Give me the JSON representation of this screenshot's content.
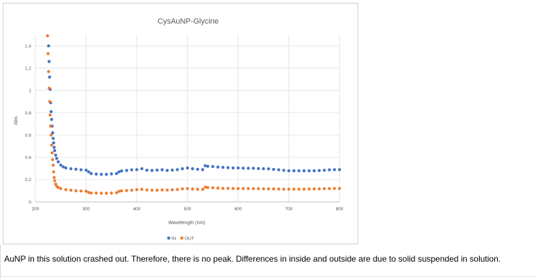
{
  "chart_data": {
    "type": "scatter",
    "title": "CysAuNP-Glycine",
    "xlabel": "Wavelength (nm)",
    "ylabel": "Abs.",
    "xlim": [
      200,
      800
    ],
    "ylim": [
      0,
      1.5
    ],
    "xticks": [
      "200",
      "300",
      "400",
      "500",
      "600",
      "700",
      "800"
    ],
    "yticks": [
      "0",
      "0.2",
      "0.4",
      "0.6",
      "0.8",
      "1",
      "1.2",
      "1.4"
    ],
    "grid": true,
    "legend": "bottom",
    "series": [
      {
        "name": "IN",
        "color": "#4472c4",
        "points": [
          [
            226,
            1.4
          ],
          [
            227,
            1.26
          ],
          [
            228,
            1.12
          ],
          [
            229,
            1.01
          ],
          [
            230,
            0.89
          ],
          [
            231,
            0.81
          ],
          [
            232,
            0.74
          ],
          [
            233,
            0.68
          ],
          [
            234,
            0.62
          ],
          [
            235,
            0.57
          ],
          [
            236,
            0.53
          ],
          [
            237,
            0.49
          ],
          [
            238,
            0.46
          ],
          [
            240,
            0.42
          ],
          [
            242,
            0.39
          ],
          [
            245,
            0.36
          ],
          [
            250,
            0.33
          ],
          [
            255,
            0.315
          ],
          [
            260,
            0.305
          ],
          [
            270,
            0.298
          ],
          [
            280,
            0.294
          ],
          [
            290,
            0.288
          ],
          [
            300,
            0.285
          ],
          [
            305,
            0.27
          ],
          [
            310,
            0.255
          ],
          [
            320,
            0.25
          ],
          [
            330,
            0.248
          ],
          [
            340,
            0.248
          ],
          [
            350,
            0.252
          ],
          [
            360,
            0.255
          ],
          [
            365,
            0.27
          ],
          [
            370,
            0.278
          ],
          [
            380,
            0.283
          ],
          [
            390,
            0.288
          ],
          [
            400,
            0.29
          ],
          [
            410,
            0.298
          ],
          [
            420,
            0.285
          ],
          [
            430,
            0.283
          ],
          [
            440,
            0.286
          ],
          [
            450,
            0.289
          ],
          [
            460,
            0.283
          ],
          [
            470,
            0.286
          ],
          [
            480,
            0.29
          ],
          [
            490,
            0.298
          ],
          [
            500,
            0.305
          ],
          [
            510,
            0.298
          ],
          [
            520,
            0.293
          ],
          [
            530,
            0.29
          ],
          [
            535,
            0.325
          ],
          [
            540,
            0.32
          ],
          [
            550,
            0.318
          ],
          [
            560,
            0.313
          ],
          [
            570,
            0.31
          ],
          [
            580,
            0.308
          ],
          [
            590,
            0.305
          ],
          [
            600,
            0.305
          ],
          [
            610,
            0.303
          ],
          [
            620,
            0.302
          ],
          [
            630,
            0.302
          ],
          [
            640,
            0.3
          ],
          [
            650,
            0.298
          ],
          [
            660,
            0.297
          ],
          [
            670,
            0.292
          ],
          [
            680,
            0.288
          ],
          [
            690,
            0.284
          ],
          [
            700,
            0.28
          ],
          [
            710,
            0.28
          ],
          [
            720,
            0.28
          ],
          [
            730,
            0.28
          ],
          [
            740,
            0.28
          ],
          [
            750,
            0.28
          ],
          [
            760,
            0.282
          ],
          [
            770,
            0.284
          ],
          [
            780,
            0.288
          ],
          [
            790,
            0.29
          ],
          [
            800,
            0.29
          ]
        ]
      },
      {
        "name": "OUT",
        "color": "#ed7d31",
        "points": [
          [
            224,
            1.49
          ],
          [
            225,
            1.33
          ],
          [
            226,
            1.17
          ],
          [
            227,
            1.02
          ],
          [
            228,
            0.9
          ],
          [
            229,
            0.78
          ],
          [
            230,
            0.68
          ],
          [
            231,
            0.6
          ],
          [
            232,
            0.51
          ],
          [
            233,
            0.44
          ],
          [
            234,
            0.38
          ],
          [
            235,
            0.33
          ],
          [
            236,
            0.27
          ],
          [
            237,
            0.22
          ],
          [
            238,
            0.19
          ],
          [
            240,
            0.16
          ],
          [
            242,
            0.14
          ],
          [
            245,
            0.13
          ],
          [
            250,
            0.12
          ],
          [
            260,
            0.11
          ],
          [
            270,
            0.105
          ],
          [
            280,
            0.1
          ],
          [
            290,
            0.098
          ],
          [
            300,
            0.097
          ],
          [
            305,
            0.085
          ],
          [
            310,
            0.08
          ],
          [
            320,
            0.08
          ],
          [
            330,
            0.078
          ],
          [
            340,
            0.078
          ],
          [
            350,
            0.08
          ],
          [
            360,
            0.083
          ],
          [
            365,
            0.095
          ],
          [
            370,
            0.1
          ],
          [
            380,
            0.102
          ],
          [
            390,
            0.105
          ],
          [
            400,
            0.11
          ],
          [
            410,
            0.113
          ],
          [
            420,
            0.108
          ],
          [
            430,
            0.105
          ],
          [
            440,
            0.105
          ],
          [
            450,
            0.108
          ],
          [
            460,
            0.107
          ],
          [
            470,
            0.109
          ],
          [
            480,
            0.112
          ],
          [
            490,
            0.118
          ],
          [
            500,
            0.12
          ],
          [
            510,
            0.116
          ],
          [
            520,
            0.114
          ],
          [
            530,
            0.113
          ],
          [
            535,
            0.132
          ],
          [
            540,
            0.13
          ],
          [
            550,
            0.127
          ],
          [
            560,
            0.124
          ],
          [
            570,
            0.122
          ],
          [
            580,
            0.122
          ],
          [
            590,
            0.121
          ],
          [
            600,
            0.12
          ],
          [
            610,
            0.12
          ],
          [
            620,
            0.12
          ],
          [
            630,
            0.119
          ],
          [
            640,
            0.119
          ],
          [
            650,
            0.118
          ],
          [
            660,
            0.118
          ],
          [
            670,
            0.117
          ],
          [
            680,
            0.116
          ],
          [
            690,
            0.115
          ],
          [
            700,
            0.115
          ],
          [
            710,
            0.115
          ],
          [
            720,
            0.115
          ],
          [
            730,
            0.115
          ],
          [
            740,
            0.116
          ],
          [
            750,
            0.117
          ],
          [
            760,
            0.118
          ],
          [
            770,
            0.119
          ],
          [
            780,
            0.12
          ],
          [
            790,
            0.121
          ],
          [
            800,
            0.121
          ]
        ]
      }
    ]
  },
  "caption": "AuNP in this solution crashed out. Therefore, there is no peak. Differences in inside and outside are due to solid suspended in solution."
}
